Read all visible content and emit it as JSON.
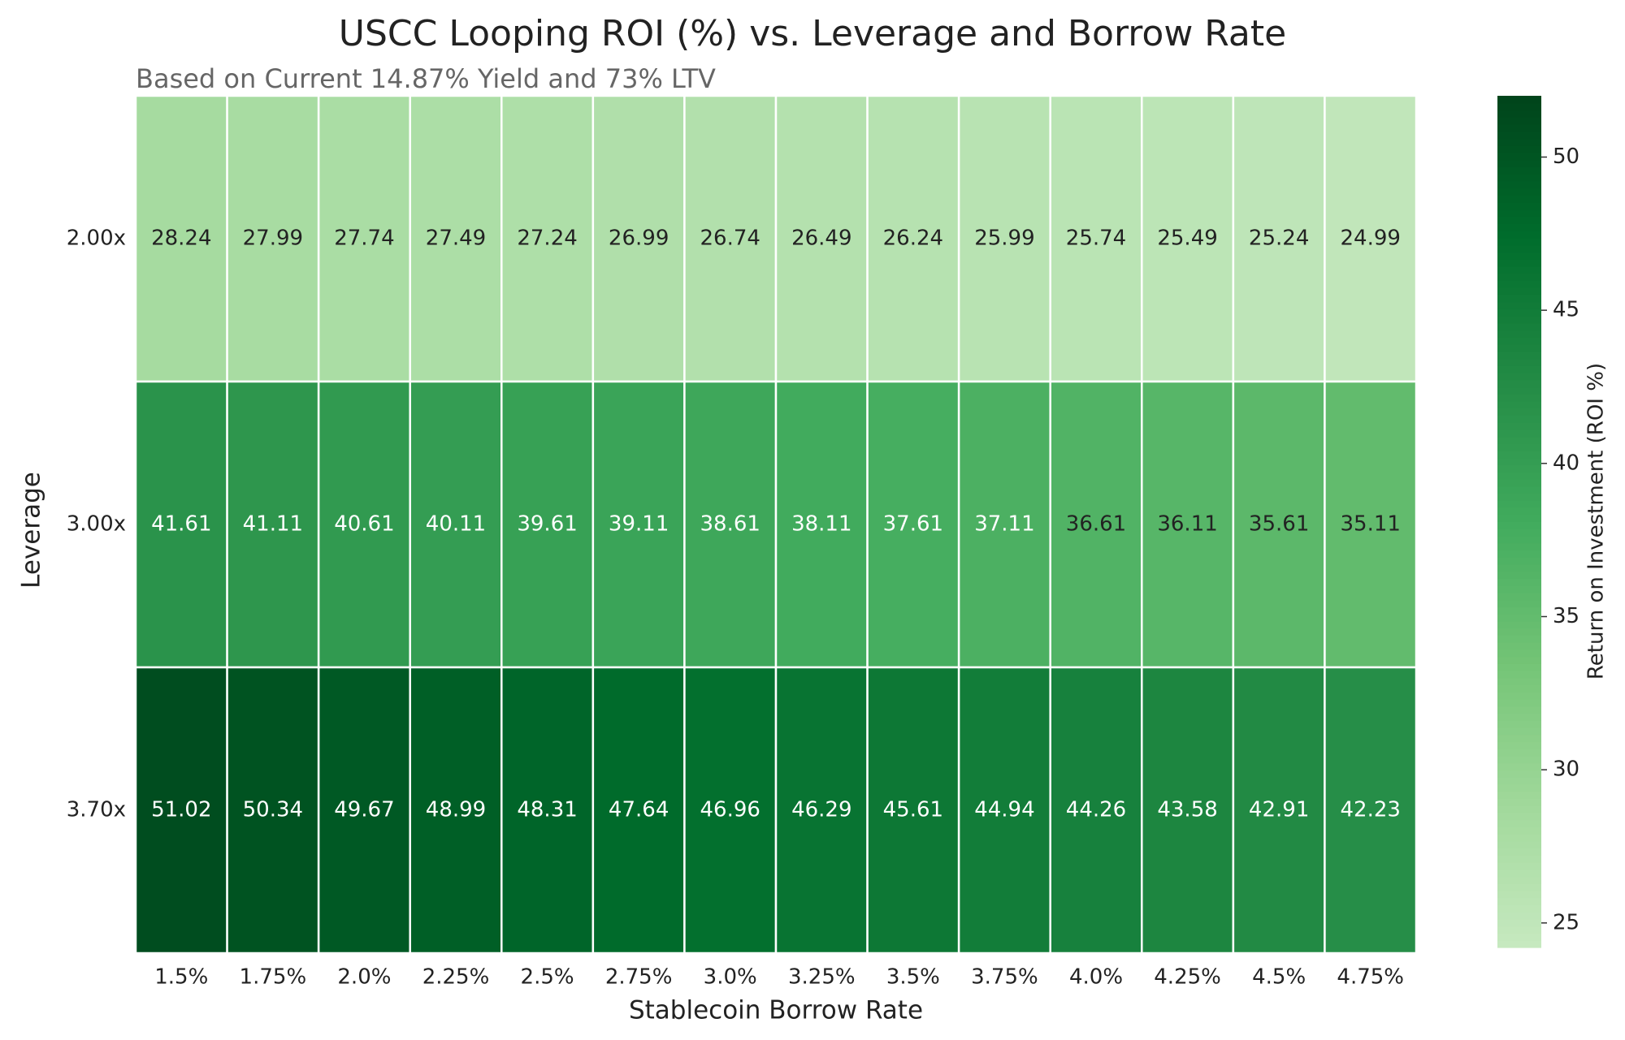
{
  "chart_data": {
    "type": "heatmap",
    "title": "USCC Looping ROI (%) vs. Leverage and Borrow Rate",
    "subtitle": "Based on Current 14.87% Yield and 73% LTV",
    "x_label": "Stablecoin Borrow Rate",
    "y_label": "Leverage",
    "colorbar_label": "Return on Investment (ROI %)",
    "categories": [
      "1.5%",
      "1.75%",
      "2.0%",
      "2.25%",
      "2.5%",
      "2.75%",
      "3.0%",
      "3.25%",
      "3.5%",
      "3.75%",
      "4.0%",
      "4.25%",
      "4.5%",
      "4.75%"
    ],
    "rows": [
      "2.00x",
      "3.00x",
      "3.70x"
    ],
    "values": [
      [
        28.24,
        27.99,
        27.74,
        27.49,
        27.24,
        26.99,
        26.74,
        26.49,
        26.24,
        25.99,
        25.74,
        25.49,
        25.24,
        24.99
      ],
      [
        41.61,
        41.11,
        40.61,
        40.11,
        39.61,
        39.11,
        38.61,
        38.11,
        37.61,
        37.11,
        36.61,
        36.11,
        35.61,
        35.11
      ],
      [
        51.02,
        50.34,
        49.67,
        48.99,
        48.31,
        47.64,
        46.96,
        46.29,
        45.61,
        44.94,
        44.26,
        43.58,
        42.91,
        42.23
      ]
    ],
    "clim": [
      24.2,
      52.0
    ],
    "cticks": [
      25,
      30,
      35,
      40,
      45,
      50
    ],
    "colormap": [
      "#c7e9c0",
      "#a1d99b",
      "#74c476",
      "#41ab5d",
      "#238b45",
      "#006d2c",
      "#00441b"
    ]
  }
}
